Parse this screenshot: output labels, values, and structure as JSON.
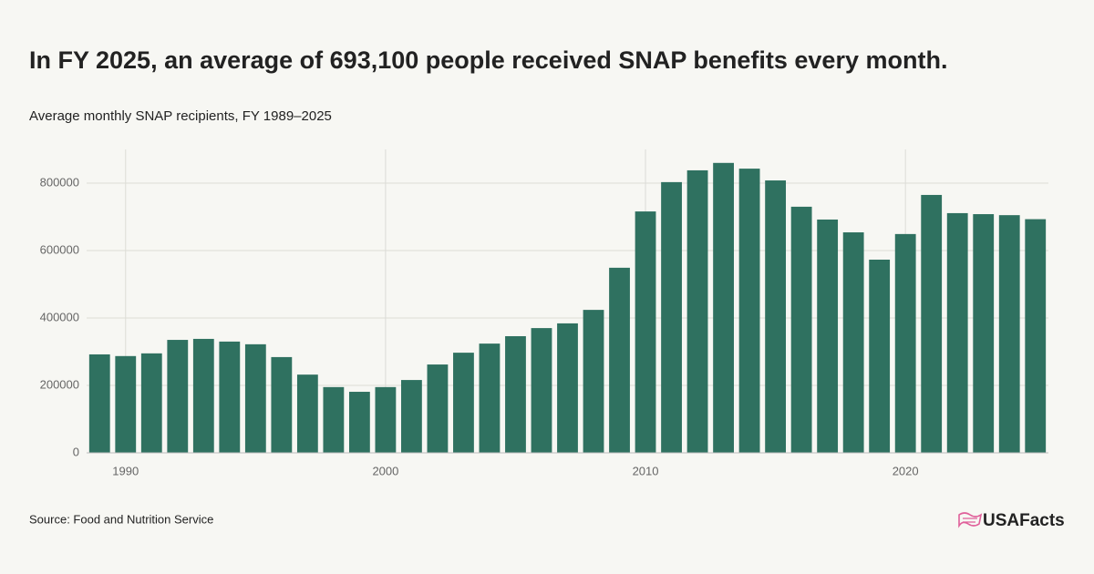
{
  "chart_data": {
    "type": "bar",
    "title": "In FY 2025, an average of 693,100 people received SNAP benefits every month.",
    "subtitle": "Average monthly SNAP recipients, FY 1989–2025",
    "x": [
      1989,
      1990,
      1991,
      1992,
      1993,
      1994,
      1995,
      1996,
      1997,
      1998,
      1999,
      2000,
      2001,
      2002,
      2003,
      2004,
      2005,
      2006,
      2007,
      2008,
      2009,
      2010,
      2011,
      2012,
      2013,
      2014,
      2015,
      2016,
      2017,
      2018,
      2019,
      2020,
      2021,
      2022,
      2023,
      2024,
      2025
    ],
    "values": [
      292000,
      287000,
      295000,
      335000,
      338000,
      330000,
      322000,
      284000,
      232000,
      195000,
      181000,
      195000,
      216000,
      262000,
      297000,
      324000,
      346000,
      370000,
      384000,
      424000,
      549000,
      716000,
      803000,
      838000,
      860000,
      843000,
      808000,
      730000,
      692000,
      654000,
      573000,
      649000,
      765000,
      711000,
      708000,
      705000,
      693100
    ],
    "color": "#2f7160",
    "xlim": [
      1988.5,
      2025.5
    ],
    "xticks": [
      1990,
      2000,
      2010,
      2020
    ],
    "ylim": [
      0,
      900000
    ],
    "yticks": [
      0,
      200000,
      400000,
      600000,
      800000
    ],
    "grid": true,
    "source": "Source: Food and Nutrition Service",
    "logo": "USAFacts"
  }
}
